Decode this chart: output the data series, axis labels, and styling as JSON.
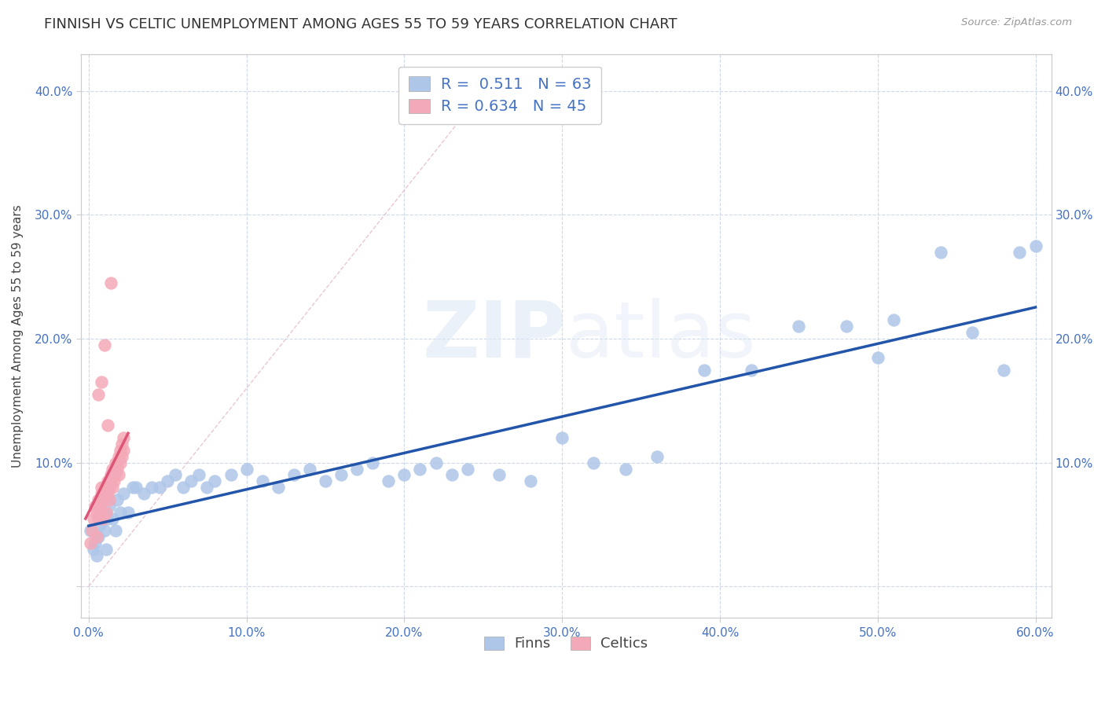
{
  "title": "FINNISH VS CELTIC UNEMPLOYMENT AMONG AGES 55 TO 59 YEARS CORRELATION CHART",
  "source": "Source: ZipAtlas.com",
  "ylabel": "Unemployment Among Ages 55 to 59 years",
  "xlim": [
    -0.005,
    0.61
  ],
  "ylim": [
    -0.025,
    0.43
  ],
  "xticks": [
    0.0,
    0.1,
    0.2,
    0.3,
    0.4,
    0.5,
    0.6
  ],
  "yticks": [
    0.0,
    0.1,
    0.2,
    0.3,
    0.4
  ],
  "finns_color": "#aec6e8",
  "celtics_color": "#f4a9b8",
  "finns_line_color": "#2255aa",
  "celtics_line_color": "#dd5577",
  "finns_R": 0.511,
  "finns_N": 63,
  "celtics_R": 0.634,
  "celtics_N": 45,
  "legend_text_color": "#4472c4",
  "watermark": "ZIPatlas",
  "title_fontsize": 13,
  "axis_label_fontsize": 11,
  "tick_fontsize": 11,
  "finns_scatter_x": [
    0.001,
    0.003,
    0.004,
    0.005,
    0.006,
    0.007,
    0.008,
    0.009,
    0.01,
    0.011,
    0.012,
    0.013,
    0.015,
    0.017,
    0.018,
    0.02,
    0.022,
    0.025,
    0.028,
    0.03,
    0.035,
    0.04,
    0.045,
    0.05,
    0.055,
    0.06,
    0.065,
    0.07,
    0.075,
    0.08,
    0.09,
    0.1,
    0.11,
    0.12,
    0.13,
    0.14,
    0.15,
    0.16,
    0.17,
    0.18,
    0.19,
    0.2,
    0.21,
    0.22,
    0.23,
    0.24,
    0.26,
    0.28,
    0.3,
    0.32,
    0.34,
    0.36,
    0.39,
    0.42,
    0.45,
    0.48,
    0.51,
    0.54,
    0.56,
    0.58,
    0.59,
    0.6,
    0.5
  ],
  "finns_scatter_y": [
    0.045,
    0.03,
    0.035,
    0.025,
    0.04,
    0.05,
    0.055,
    0.06,
    0.045,
    0.03,
    0.055,
    0.065,
    0.055,
    0.045,
    0.07,
    0.06,
    0.075,
    0.06,
    0.08,
    0.08,
    0.075,
    0.08,
    0.08,
    0.085,
    0.09,
    0.08,
    0.085,
    0.09,
    0.08,
    0.085,
    0.09,
    0.095,
    0.085,
    0.08,
    0.09,
    0.095,
    0.085,
    0.09,
    0.095,
    0.1,
    0.085,
    0.09,
    0.095,
    0.1,
    0.09,
    0.095,
    0.09,
    0.085,
    0.12,
    0.1,
    0.095,
    0.105,
    0.175,
    0.175,
    0.21,
    0.21,
    0.215,
    0.27,
    0.205,
    0.175,
    0.27,
    0.275,
    0.185
  ],
  "celtics_scatter_x": [
    0.001,
    0.002,
    0.003,
    0.004,
    0.005,
    0.005,
    0.006,
    0.006,
    0.007,
    0.007,
    0.008,
    0.008,
    0.009,
    0.009,
    0.01,
    0.01,
    0.011,
    0.011,
    0.012,
    0.012,
    0.013,
    0.013,
    0.014,
    0.014,
    0.015,
    0.015,
    0.016,
    0.016,
    0.017,
    0.017,
    0.018,
    0.018,
    0.019,
    0.019,
    0.02,
    0.02,
    0.021,
    0.021,
    0.022,
    0.022,
    0.014,
    0.008,
    0.01,
    0.006,
    0.012
  ],
  "celtics_scatter_y": [
    0.035,
    0.045,
    0.055,
    0.065,
    0.04,
    0.06,
    0.07,
    0.055,
    0.06,
    0.065,
    0.075,
    0.08,
    0.055,
    0.07,
    0.08,
    0.075,
    0.06,
    0.08,
    0.075,
    0.085,
    0.07,
    0.08,
    0.09,
    0.085,
    0.08,
    0.095,
    0.09,
    0.085,
    0.1,
    0.09,
    0.095,
    0.1,
    0.105,
    0.09,
    0.1,
    0.11,
    0.105,
    0.115,
    0.12,
    0.11,
    0.245,
    0.165,
    0.195,
    0.155,
    0.13
  ],
  "celtics_line_x": [
    0.0,
    0.022
  ],
  "finns_line_x": [
    0.0,
    0.6
  ],
  "diag_line_x": [
    0.0,
    0.25
  ],
  "diag_line_y": [
    0.0,
    0.4
  ]
}
